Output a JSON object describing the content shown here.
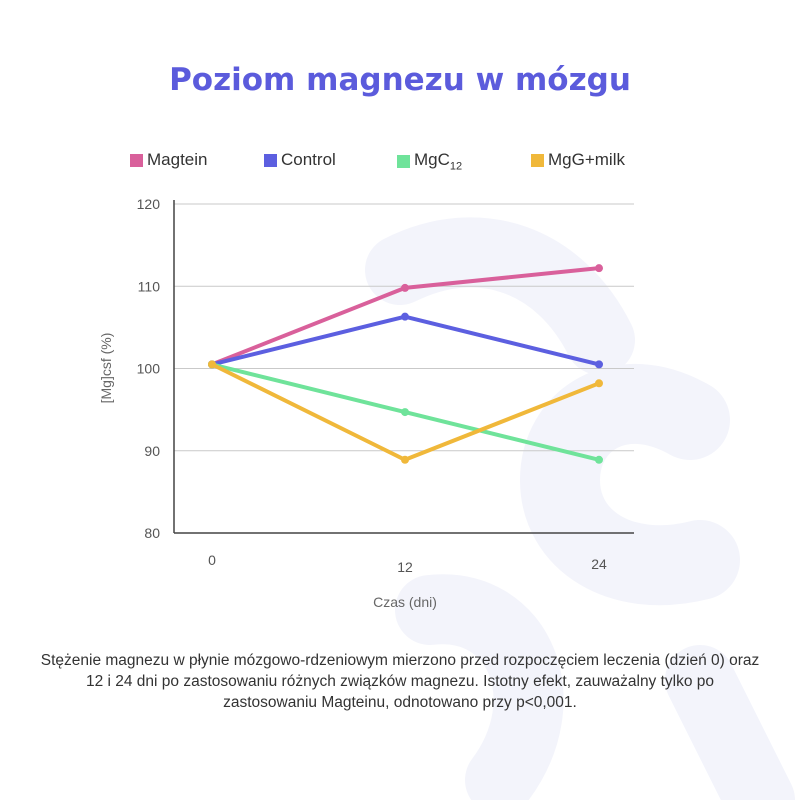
{
  "title": "Poziom magnezu w mózgu",
  "legend": [
    {
      "label": "Magtein",
      "color": "#d9609b"
    },
    {
      "label": "Control",
      "color": "#5c5fe0"
    },
    {
      "label": "MgC",
      "sub": "12",
      "color": "#6fe39a"
    },
    {
      "label": "MgG+milk",
      "color": "#f0b83a"
    }
  ],
  "chart_data": {
    "type": "line",
    "x": [
      0,
      12,
      24
    ],
    "xticks": [
      "0",
      "12",
      "24"
    ],
    "yticks": [
      "80",
      "90",
      "100",
      "110",
      "120"
    ],
    "ylim": [
      80,
      120
    ],
    "xlabel": "Czas (dni)",
    "ylabel": "[Mg]csf (%)",
    "series": [
      {
        "name": "Magtein",
        "color": "#d9609b",
        "values": [
          100.5,
          109.8,
          112.2
        ]
      },
      {
        "name": "Control",
        "color": "#5c5fe0",
        "values": [
          100.5,
          106.3,
          100.5
        ]
      },
      {
        "name": "MgC12",
        "color": "#6fe39a",
        "values": [
          100.5,
          94.7,
          88.9
        ]
      },
      {
        "name": "MgG+milk",
        "color": "#f0b83a",
        "values": [
          100.5,
          88.9,
          98.2
        ]
      }
    ]
  },
  "caption": "Stężenie magnezu w płynie mózgowo-rdzeniowym mierzono przed rozpoczęciem leczenia (dzień 0) oraz 12 i 24 dni po zastosowaniu różnych związków magnezu. Istotny efekt, zauważalny tylko po zastosowaniu Magteinu, odnotowano przy p<0,001."
}
